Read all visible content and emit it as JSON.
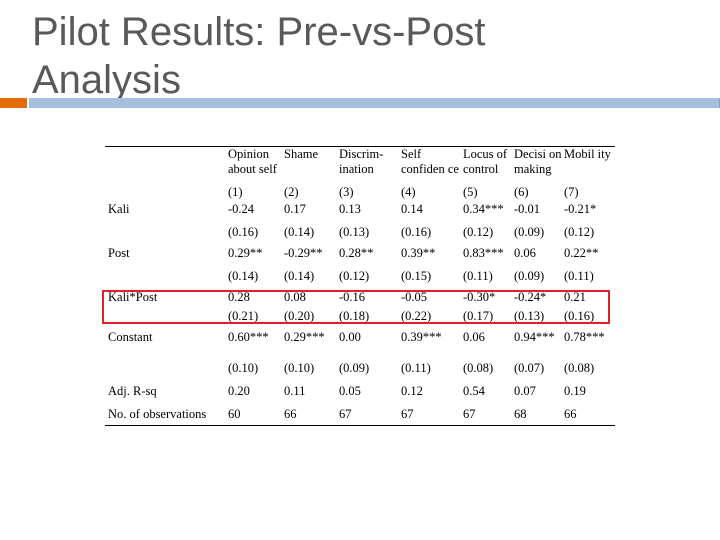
{
  "title": {
    "line1": "Pilot Results: Pre-vs-Post",
    "line2": "Analysis"
  },
  "colors": {
    "accent_orange": "#e46c0a",
    "accent_blue": "#a6bfdd",
    "highlight_red": "#e0202a",
    "title_gray": "#595959"
  },
  "table": {
    "headers": [
      "Opinion about self",
      "Shame",
      "Discrim-ination",
      "Self confiden ce",
      "Locus of control",
      "Decisi on making",
      "Mobil ity"
    ],
    "col_numbers": [
      "(1)",
      "(2)",
      "(3)",
      "(4)",
      "(5)",
      "(6)",
      "(7)"
    ],
    "rows": [
      {
        "label": "Kali",
        "coef": [
          "-0.24",
          "0.17",
          "0.13",
          "0.14",
          "0.34***",
          "-0.01",
          "-0.21*"
        ],
        "se": [
          "(0.16)",
          "(0.14)",
          "(0.13)",
          "(0.16)",
          "(0.12)",
          "(0.09)",
          "(0.12)"
        ]
      },
      {
        "label": "Post",
        "coef": [
          "0.29**",
          "-0.29**",
          "0.28**",
          "0.39**",
          "0.83***",
          "0.06",
          "0.22**"
        ],
        "se": [
          "(0.14)",
          "(0.14)",
          "(0.12)",
          "(0.15)",
          "(0.11)",
          "(0.09)",
          "(0.11)"
        ]
      },
      {
        "label": "Kali*Post",
        "coef": [
          "0.28",
          "0.08",
          "-0.16",
          "-0.05",
          "-0.30*",
          "-0.24*",
          "0.21"
        ],
        "se": [
          "(0.21)",
          "(0.20)",
          "(0.18)",
          "(0.22)",
          "(0.17)",
          "(0.13)",
          "(0.16)"
        ]
      },
      {
        "label": "Constant",
        "coef": [
          "0.60***",
          "0.29***",
          "0.00",
          "0.39***",
          "0.06",
          "0.94***",
          "0.78***"
        ],
        "se": [
          "(0.10)",
          "(0.10)",
          "(0.09)",
          "(0.11)",
          "(0.08)",
          "(0.07)",
          "(0.08)"
        ]
      }
    ],
    "footer_rows": [
      {
        "label": "Adj. R-sq",
        "values": [
          "0.20",
          "0.11",
          "0.05",
          "0.12",
          "0.54",
          "0.07",
          "0.19"
        ]
      },
      {
        "label": "No. of observations",
        "values": [
          "60",
          "66",
          "67",
          "67",
          "67",
          "68",
          "66"
        ]
      }
    ]
  }
}
